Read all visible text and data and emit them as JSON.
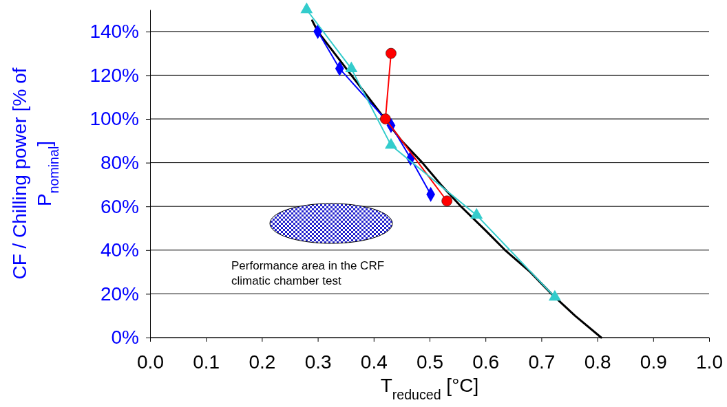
{
  "chart_data": {
    "type": "line",
    "xlabel": "T$_{reduced}$ [°C]",
    "ylabel": "CF / Chilling power [% of P$_{nominal}$]",
    "xlim": [
      0,
      1
    ],
    "ylim": [
      0,
      150
    ],
    "xticks": [
      {
        "value": 0,
        "label": "0.0"
      },
      {
        "value": 0.1,
        "label": "0.1"
      },
      {
        "value": 0.2,
        "label": "0.2"
      },
      {
        "value": 0.3,
        "label": "0.3"
      },
      {
        "value": 0.4,
        "label": "0.4"
      },
      {
        "value": 0.5,
        "label": "0.5"
      },
      {
        "value": 0.6,
        "label": "0.6"
      },
      {
        "value": 0.7,
        "label": "0.7"
      },
      {
        "value": 0.8,
        "label": "0.8"
      },
      {
        "value": 0.9,
        "label": "0.9"
      },
      {
        "value": 1,
        "label": "1.0"
      }
    ],
    "yticks": [
      {
        "value": 0,
        "label": "0%"
      },
      {
        "value": 20,
        "label": "20%"
      },
      {
        "value": 40,
        "label": "40%"
      },
      {
        "value": 60,
        "label": "60%"
      },
      {
        "value": 80,
        "label": "80%"
      },
      {
        "value": 100,
        "label": "100%"
      },
      {
        "value": 120,
        "label": "120%"
      },
      {
        "value": 140,
        "label": "140%"
      }
    ],
    "grid": "y",
    "series": [
      {
        "color": "#000000",
        "marker": "none",
        "x": [
          0.29,
          0.3,
          0.33,
          0.36,
          0.39,
          0.42,
          0.45,
          0.487,
          0.52,
          0.556,
          0.6,
          0.635,
          0.68,
          0.718,
          0.76,
          0.807
        ],
        "values": [
          145,
          140,
          130,
          120,
          110,
          100,
          90,
          80,
          70,
          60,
          49,
          40,
          30,
          20,
          10,
          0
        ]
      },
      {
        "color": "#0000ff",
        "marker": "diamond",
        "x": [
          0.3,
          0.339,
          0.431,
          0.466,
          0.502
        ],
        "values": [
          140,
          123,
          97,
          82,
          65.5
        ]
      },
      {
        "color": "#ff0000",
        "marker": "circle",
        "x": [
          0.431,
          0.421,
          0.531
        ],
        "values": [
          130,
          100,
          62.5
        ]
      },
      {
        "color": "#33cccc",
        "marker": "triangle",
        "x": [
          0.28,
          0.36,
          0.431,
          0.584,
          0.724
        ],
        "values": [
          150,
          123,
          88,
          56,
          18.5
        ]
      }
    ],
    "annotations": [
      "Performance area  in the CRF climatic chamber test"
    ]
  }
}
